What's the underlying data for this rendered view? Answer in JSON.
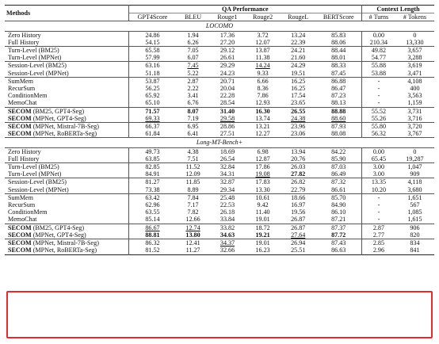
{
  "headers": {
    "methods": "Methods",
    "qa_group": "QA Performance",
    "ctx_group": "Context Length",
    "columns": [
      "GPT4Score",
      "BLEU",
      "Rouge1",
      "Rouge2",
      "RougeL",
      "BERTScore",
      "# Turns",
      "# Tokens"
    ]
  },
  "sections": [
    {
      "title": "LOCOMO",
      "groups": [
        [
          {
            "method": "Zero History",
            "values": [
              "24.86",
              "1.94",
              "17.36",
              "3.72",
              "13.24",
              "85.83",
              "0.00",
              "0"
            ]
          },
          {
            "method": "Full History",
            "values": [
              "54.15",
              "6.26",
              "27.20",
              "12.07",
              "22.39",
              "88.06",
              "210.34",
              "13,330"
            ]
          }
        ],
        [
          {
            "method": "Turn-Level (BM25)",
            "values": [
              "65.58",
              "7.05",
              "29.12",
              "13.87",
              "24.21",
              "88.44",
              "49.82",
              "3,657"
            ]
          },
          {
            "method": "Turn-Level (MPNet)",
            "values": [
              "57.99",
              "6.07",
              "26.61",
              "11.38",
              "21.60",
              "88.01",
              "54.77",
              "3,288"
            ]
          }
        ],
        [
          {
            "method": "Session-Level (BM25)",
            "values": [
              "63.16",
              "7.45",
              "29.29",
              "14.24",
              "24.29",
              "88.33",
              "55.88",
              "3,619"
            ]
          },
          {
            "method": "Session-Level (MPNet)",
            "values": [
              "51.18",
              "5.22",
              "24.23",
              "9.33",
              "19.51",
              "87.45",
              "53.88",
              "3,471"
            ]
          }
        ],
        [
          {
            "method": "SumMem",
            "values": [
              "53.87",
              "2.87",
              "20.71",
              "6.66",
              "16.25",
              "86.88",
              "-",
              "4,108"
            ]
          },
          {
            "method": "RecurSum",
            "values": [
              "56.25",
              "2.22",
              "20.04",
              "8.36",
              "16.25",
              "86.47",
              "-",
              "400"
            ]
          },
          {
            "method": "ConditionMem",
            "values": [
              "65.92",
              "3.41",
              "22.28",
              "7.86",
              "17.54",
              "87.23",
              "-",
              "3,563"
            ]
          },
          {
            "method": "MemoChat",
            "values": [
              "65.10",
              "6.76",
              "28.54",
              "12.93",
              "23.65",
              "88.13",
              "-",
              "1,159"
            ]
          }
        ],
        [
          {
            "method": "SECOM",
            "suffix": " (BM25, GPT4-Seg)",
            "values": [
              "71.57",
              "8.07",
              "31.40",
              "16.30",
              "26.55",
              "88.88",
              "55.52",
              "3,731"
            ]
          },
          {
            "method": "SECOM",
            "suffix": " (MPNet, GPT4-Seg)",
            "values": [
              "69.33",
              "7.19",
              "29.58",
              "13.74",
              "24.38",
              "88.60",
              "55.26",
              "3,716"
            ]
          }
        ],
        [
          {
            "method": "SECOM",
            "suffix": " (MPNet, Mistral-7B-Seg)",
            "values": [
              "66.37",
              "6.95",
              "28.86",
              "13.21",
              "23.96",
              "87.93",
              "55.80",
              "3,720"
            ]
          },
          {
            "method": "SECOM",
            "suffix": " (MPNet, RoBERTa-Seg)",
            "values": [
              "61.84",
              "6.41",
              "27.51",
              "12.27",
              "23.06",
              "88.08",
              "56.32",
              "3,767"
            ]
          }
        ]
      ]
    },
    {
      "title": "Long-MT-Bench+",
      "groups": [
        [
          {
            "method": "Zero History",
            "values": [
              "49.73",
              "4.38",
              "18.69",
              "6.98",
              "13.94",
              "84.22",
              "0.00",
              "0"
            ]
          },
          {
            "method": "Full History",
            "values": [
              "63.85",
              "7.51",
              "26.54",
              "12.87",
              "20.76",
              "85.90",
              "65.45",
              "19,287"
            ]
          }
        ],
        [
          {
            "method": "Turn-Level (BM25)",
            "values": [
              "82.85",
              "11.52",
              "32.84",
              "17.86",
              "26.03",
              "87.03",
              "3.00",
              "1,047"
            ]
          },
          {
            "method": "Turn-Level (MPNet)",
            "values": [
              "84.91",
              "12.09",
              "34.31",
              "19.08",
              "27.82",
              "86.49",
              "3.00",
              "909"
            ]
          }
        ],
        [
          {
            "method": "Session-Level (BM25)",
            "values": [
              "81.27",
              "11.85",
              "32.87",
              "17.83",
              "26.82",
              "87.32",
              "13.35",
              "4,118"
            ]
          },
          {
            "method": "Session-Level (MPNet)",
            "values": [
              "73.38",
              "8.89",
              "29.34",
              "13.30",
              "22.79",
              "86.61",
              "10.20",
              "3,680"
            ]
          }
        ],
        [
          {
            "method": "SumMem",
            "values": [
              "63.42",
              "7.84",
              "25.48",
              "10.61",
              "18.66",
              "85.70",
              "-",
              "1,651"
            ]
          },
          {
            "method": "RecurSum",
            "values": [
              "62.96",
              "7.17",
              "22.53",
              "9.42",
              "16.97",
              "84.90",
              "-",
              "567"
            ]
          },
          {
            "method": "ConditionMem",
            "values": [
              "63.55",
              "7.82",
              "26.18",
              "11.40",
              "19.56",
              "86.10",
              "-",
              "1,085"
            ]
          },
          {
            "method": "MemoChat",
            "values": [
              "85.14",
              "12.66",
              "33.84",
              "19.01",
              "26.87",
              "87.21",
              "-",
              "1,615"
            ]
          }
        ],
        [
          {
            "method": "SECOM",
            "suffix": " (BM25, GPT4-Seg)",
            "values": [
              "86.67",
              "12.74",
              "33.82",
              "18.72",
              "26.87",
              "87.37",
              "2.87",
              "906"
            ]
          },
          {
            "method": "SECOM",
            "suffix": " (MPNet, GPT4-Seg)",
            "values": [
              "88.81",
              "13.80",
              "34.63",
              "19.21",
              "27.64",
              "87.72",
              "2.77",
              "820"
            ]
          }
        ],
        [
          {
            "method": "SECOM",
            "suffix": " (MPNet, Mistral-7B-Seg)",
            "values": [
              "86.32",
              "12.41",
              "34.37",
              "19.01",
              "26.94",
              "87.43",
              "2.85",
              "834"
            ]
          },
          {
            "method": "SECOM",
            "suffix": " (MPNet, RoBERTa-Seg)",
            "values": [
              "81.52",
              "11.27",
              "32.66",
              "16.23",
              "25.51",
              "86.63",
              "2.96",
              "841"
            ]
          }
        ]
      ]
    }
  ],
  "emphasis": {
    "bold": [
      [
        0,
        4,
        0,
        0
      ],
      [
        0,
        4,
        0,
        1
      ],
      [
        0,
        4,
        0,
        2
      ],
      [
        0,
        4,
        0,
        3
      ],
      [
        0,
        4,
        0,
        4
      ],
      [
        0,
        4,
        0,
        5
      ],
      [
        1,
        1,
        1,
        4
      ],
      [
        1,
        4,
        1,
        0
      ],
      [
        1,
        4,
        1,
        1
      ],
      [
        1,
        4,
        1,
        2
      ],
      [
        1,
        4,
        1,
        3
      ],
      [
        1,
        4,
        1,
        5
      ]
    ],
    "underline": [
      [
        0,
        2,
        0,
        1
      ],
      [
        0,
        2,
        0,
        3
      ],
      [
        0,
        4,
        1,
        0
      ],
      [
        0,
        4,
        1,
        2
      ],
      [
        0,
        4,
        1,
        4
      ],
      [
        0,
        4,
        1,
        5
      ],
      [
        1,
        1,
        1,
        3
      ],
      [
        1,
        4,
        0,
        0
      ],
      [
        1,
        4,
        0,
        1
      ],
      [
        1,
        4,
        1,
        4
      ],
      [
        1,
        5,
        0,
        2
      ]
    ]
  },
  "highlight": {
    "color": "#e52b2b",
    "section": 1,
    "groups": [
      4,
      5
    ]
  }
}
